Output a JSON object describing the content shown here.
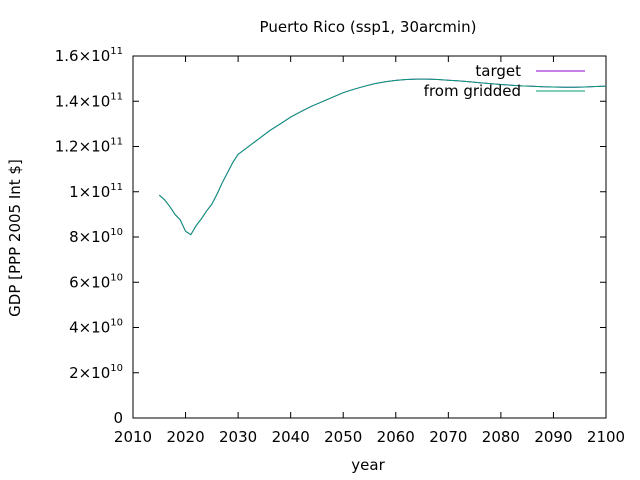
{
  "chart_data": {
    "type": "line",
    "title": "Puerto Rico (ssp1, 30arcmin)",
    "xlabel": "year",
    "ylabel": "GDP [PPP 2005 Int $]",
    "xlim": [
      2010,
      2100
    ],
    "ylim": [
      0,
      160000000000
    ],
    "x_ticks": [
      "2010",
      "2020",
      "2030",
      "2040",
      "2050",
      "2060",
      "2070",
      "2080",
      "2090",
      "2100"
    ],
    "y_ticks": [
      {
        "value": 0,
        "mantissa": "0",
        "exp": ""
      },
      {
        "value": 20000000000,
        "mantissa": "2×10",
        "exp": "10"
      },
      {
        "value": 40000000000,
        "mantissa": "4×10",
        "exp": "10"
      },
      {
        "value": 60000000000,
        "mantissa": "6×10",
        "exp": "10"
      },
      {
        "value": 80000000000,
        "mantissa": "8×10",
        "exp": "10"
      },
      {
        "value": 100000000000,
        "mantissa": "1×10",
        "exp": "11"
      },
      {
        "value": 120000000000,
        "mantissa": "1.2×10",
        "exp": "11"
      },
      {
        "value": 140000000000,
        "mantissa": "1.4×10",
        "exp": "11"
      },
      {
        "value": 160000000000,
        "mantissa": "1.6×10",
        "exp": "11"
      }
    ],
    "legend_position": "top-right",
    "grid": false,
    "x": [
      2015,
      2016,
      2017,
      2018,
      2019,
      2020,
      2021,
      2022,
      2023,
      2024,
      2025,
      2026,
      2027,
      2028,
      2029,
      2030,
      2032,
      2034,
      2036,
      2038,
      2040,
      2042,
      2044,
      2046,
      2048,
      2050,
      2052,
      2054,
      2056,
      2058,
      2060,
      2062,
      2064,
      2066,
      2068,
      2070,
      2072,
      2074,
      2076,
      2078,
      2080,
      2082,
      2084,
      2086,
      2088,
      2090,
      2092,
      2094,
      2096,
      2098,
      2100
    ],
    "series": [
      {
        "name": "target",
        "color": "#9400d3",
        "values": [
          98.5,
          96.5,
          93.5,
          90.0,
          87.5,
          82.5,
          81.0,
          85.0,
          88.0,
          91.5,
          94.5,
          99.0,
          104.0,
          108.5,
          113.0,
          116.5,
          120.0,
          123.5,
          127.0,
          130.0,
          133.0,
          135.5,
          137.8,
          139.8,
          141.8,
          143.8,
          145.3,
          146.6,
          147.8,
          148.6,
          149.2,
          149.6,
          149.8,
          149.8,
          149.6,
          149.3,
          149.0,
          148.6,
          148.2,
          147.8,
          147.4,
          147.1,
          146.8,
          146.6,
          146.4,
          146.3,
          146.2,
          146.2,
          146.3,
          146.5,
          146.7
        ]
      },
      {
        "name": "from gridded",
        "color": "#009e73",
        "values": [
          98.5,
          96.5,
          93.5,
          90.0,
          87.5,
          82.5,
          81.0,
          85.0,
          88.0,
          91.5,
          94.5,
          99.0,
          104.0,
          108.5,
          113.0,
          116.5,
          120.0,
          123.5,
          127.0,
          130.0,
          133.0,
          135.5,
          137.8,
          139.8,
          141.8,
          143.8,
          145.3,
          146.6,
          147.8,
          148.6,
          149.2,
          149.6,
          149.8,
          149.8,
          149.6,
          149.3,
          149.0,
          148.6,
          148.2,
          147.8,
          147.4,
          147.1,
          146.8,
          146.6,
          146.4,
          146.3,
          146.2,
          146.2,
          146.3,
          146.5,
          146.7
        ]
      }
    ],
    "value_unit_note": "series values in units of 1e9"
  }
}
